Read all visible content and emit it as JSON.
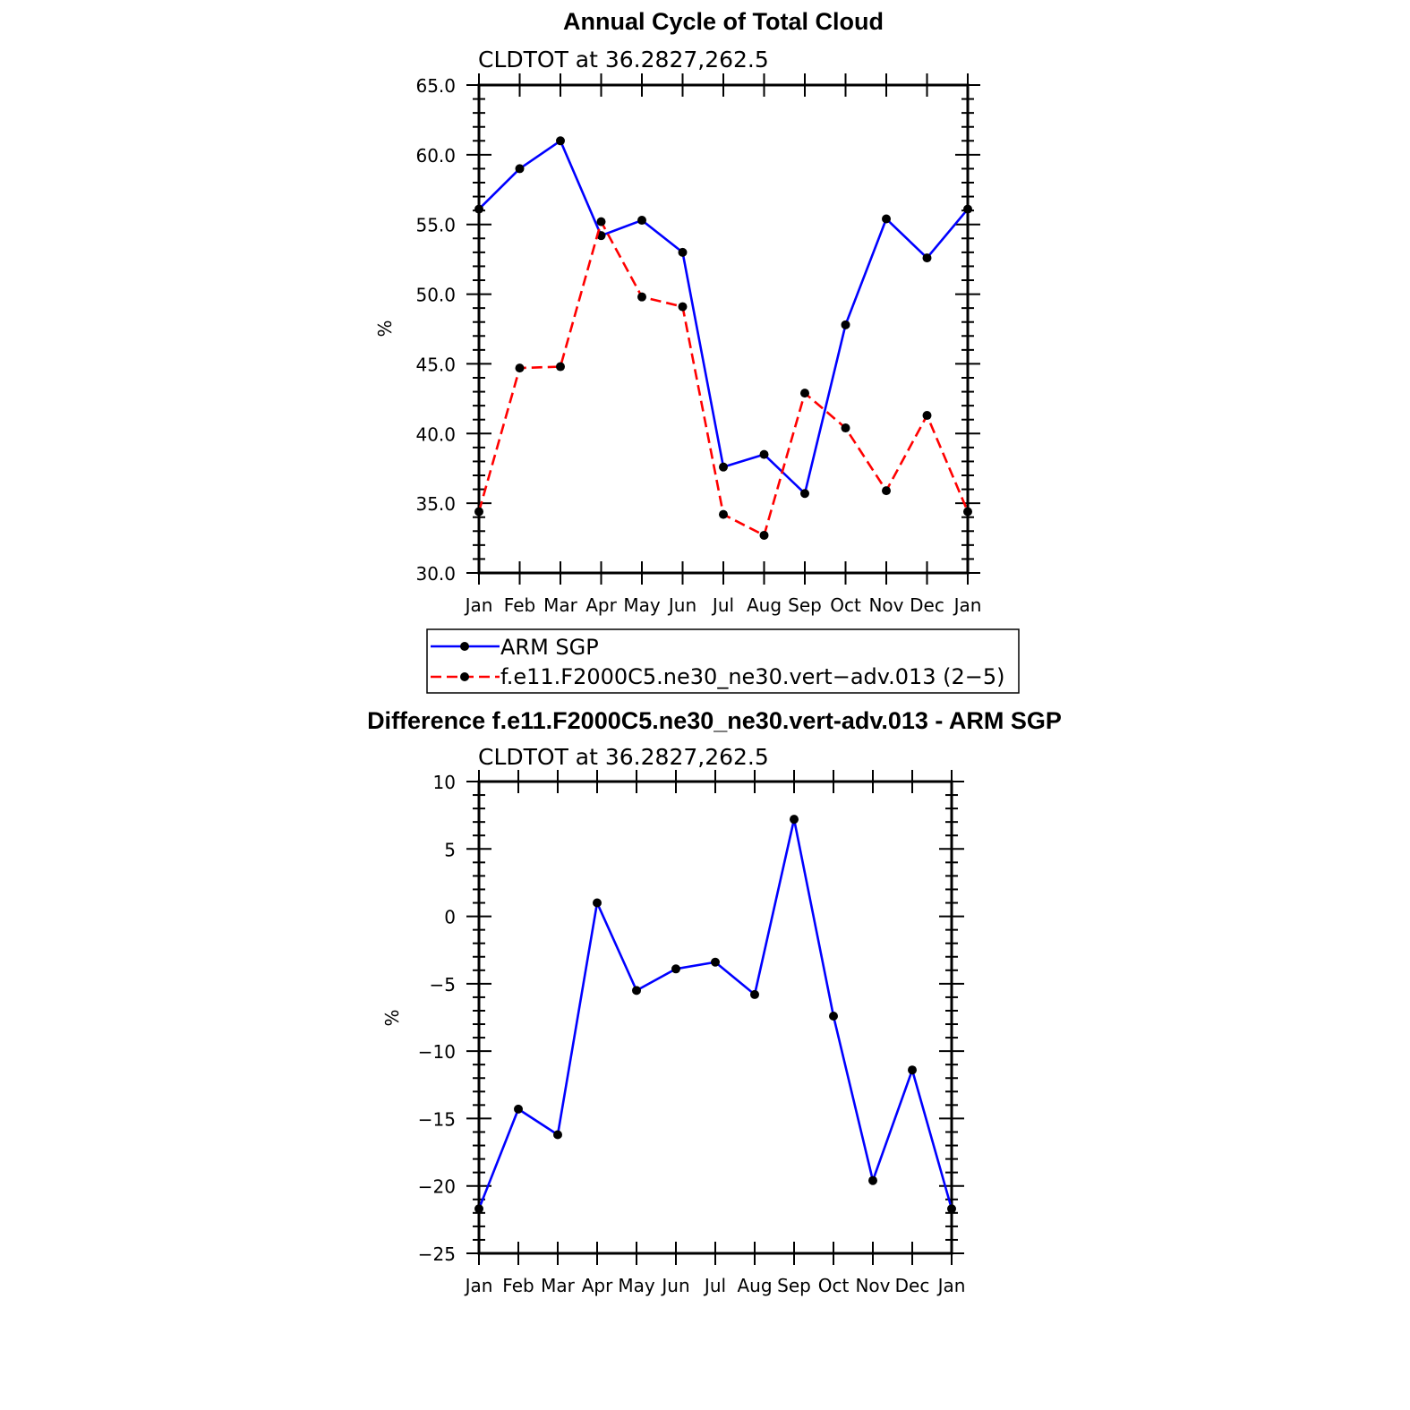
{
  "chart_data": [
    {
      "type": "line",
      "title": "Annual Cycle of Total Cloud",
      "subtitle": "CLDTOT at 36.2827,262.5",
      "ylabel": "%",
      "xlabel": "",
      "ylim": [
        30,
        65
      ],
      "yticks": [
        "65.0",
        "60.0",
        "55.0",
        "50.0",
        "45.0",
        "40.0",
        "35.0",
        "30.0"
      ],
      "categories": [
        "Jan",
        "Feb",
        "Mar",
        "Apr",
        "May",
        "Jun",
        "Jul",
        "Aug",
        "Sep",
        "Oct",
        "Nov",
        "Dec",
        "Jan"
      ],
      "grid": false,
      "legend": "below",
      "series": [
        {
          "name": "ARM SGP",
          "color": "#0000ff",
          "style": "solid",
          "values": [
            56.1,
            59.0,
            61.0,
            54.2,
            55.3,
            53.0,
            37.6,
            38.5,
            35.7,
            47.8,
            55.4,
            52.6,
            56.1
          ]
        },
        {
          "name": "f.e11.F2000C5.ne30_ne30.vert−adv.013 (2−5)",
          "color": "#ff0000",
          "style": "dashed",
          "values": [
            34.4,
            44.7,
            44.8,
            55.2,
            49.8,
            49.1,
            34.2,
            32.7,
            42.9,
            40.4,
            35.9,
            41.3,
            34.4
          ]
        }
      ]
    },
    {
      "type": "line",
      "title": "Difference f.e11.F2000C5.ne30_ne30.vert-adv.013 - ARM SGP",
      "subtitle": "CLDTOT at 36.2827,262.5",
      "ylabel": "%",
      "xlabel": "",
      "ylim": [
        -25,
        10
      ],
      "yticks": [
        "10",
        "5",
        "0",
        "−5",
        "−10",
        "−15",
        "−20",
        "−25"
      ],
      "categories": [
        "Jan",
        "Feb",
        "Mar",
        "Apr",
        "May",
        "Jun",
        "Jul",
        "Aug",
        "Sep",
        "Oct",
        "Nov",
        "Dec",
        "Jan"
      ],
      "grid": false,
      "series": [
        {
          "color": "#0000ff",
          "style": "solid",
          "values": [
            -21.7,
            -14.3,
            -16.2,
            1.0,
            -5.5,
            -3.9,
            -3.4,
            -5.8,
            7.2,
            -7.4,
            -19.6,
            -11.4,
            -21.7
          ]
        }
      ]
    }
  ]
}
